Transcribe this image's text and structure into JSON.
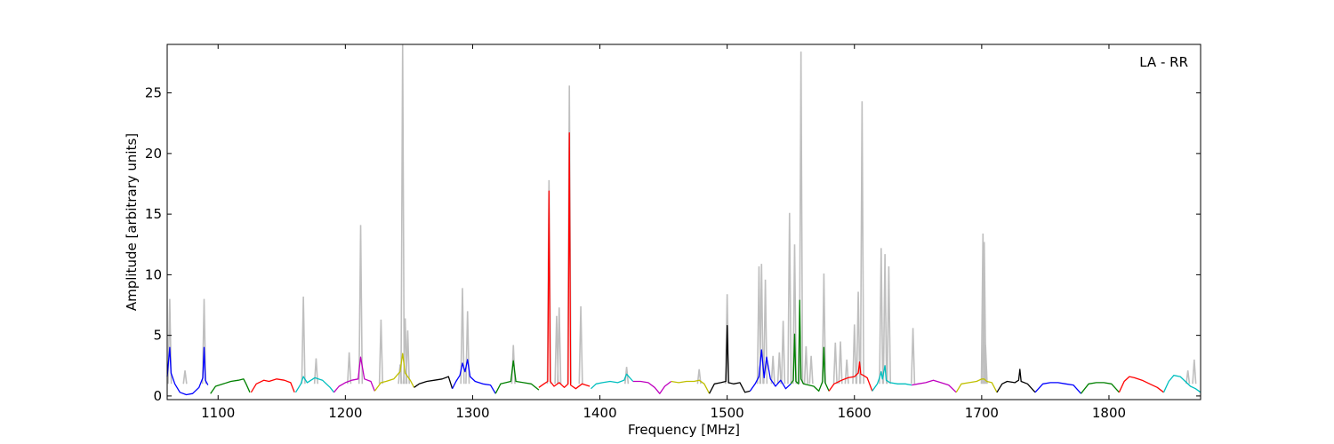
{
  "chart_data": {
    "type": "line",
    "title": "",
    "annotation": "LA - RR",
    "xlabel": "Frequency [MHz]",
    "ylabel": "Amplitude [arbitrary units]",
    "xlim": [
      1060,
      1872
    ],
    "ylim": [
      -0.3,
      29
    ],
    "xticks": [
      1100,
      1200,
      1300,
      1400,
      1500,
      1600,
      1700,
      1800
    ],
    "yticks": [
      0,
      5,
      10,
      15,
      20,
      25
    ],
    "raw_color": "#bfbfbf",
    "colors": [
      "#0000ff",
      "#008000",
      "#ff0000",
      "#00bfbf",
      "#bf00bf",
      "#bfbf00",
      "#000000"
    ],
    "grid": false,
    "raw_spikes": [
      {
        "x": 1062,
        "y": 8.0
      },
      {
        "x": 1074,
        "y": 2.1
      },
      {
        "x": 1089,
        "y": 8.0
      },
      {
        "x": 1167,
        "y": 8.2
      },
      {
        "x": 1177,
        "y": 3.1
      },
      {
        "x": 1203,
        "y": 3.6
      },
      {
        "x": 1212,
        "y": 14.1
      },
      {
        "x": 1228,
        "y": 6.3
      },
      {
        "x": 1243,
        "y": 2.6
      },
      {
        "x": 1245,
        "y": 29.0
      },
      {
        "x": 1247,
        "y": 6.4
      },
      {
        "x": 1249,
        "y": 5.4
      },
      {
        "x": 1292,
        "y": 8.9
      },
      {
        "x": 1296,
        "y": 7.0
      },
      {
        "x": 1332,
        "y": 4.2
      },
      {
        "x": 1360,
        "y": 17.8
      },
      {
        "x": 1366,
        "y": 6.6
      },
      {
        "x": 1368,
        "y": 7.3
      },
      {
        "x": 1376,
        "y": 25.6
      },
      {
        "x": 1385,
        "y": 7.4
      },
      {
        "x": 1421,
        "y": 2.4
      },
      {
        "x": 1478,
        "y": 2.2
      },
      {
        "x": 1500,
        "y": 8.4
      },
      {
        "x": 1525,
        "y": 10.7
      },
      {
        "x": 1527,
        "y": 10.9
      },
      {
        "x": 1530,
        "y": 9.6
      },
      {
        "x": 1536,
        "y": 3.3
      },
      {
        "x": 1541,
        "y": 3.6
      },
      {
        "x": 1544,
        "y": 6.2
      },
      {
        "x": 1549,
        "y": 15.1
      },
      {
        "x": 1553,
        "y": 12.5
      },
      {
        "x": 1558,
        "y": 28.4
      },
      {
        "x": 1562,
        "y": 4.1
      },
      {
        "x": 1566,
        "y": 3.3
      },
      {
        "x": 1576,
        "y": 10.1
      },
      {
        "x": 1585,
        "y": 4.4
      },
      {
        "x": 1589,
        "y": 4.5
      },
      {
        "x": 1594,
        "y": 3.0
      },
      {
        "x": 1600,
        "y": 5.9
      },
      {
        "x": 1603,
        "y": 8.6
      },
      {
        "x": 1606,
        "y": 24.3
      },
      {
        "x": 1621,
        "y": 12.2
      },
      {
        "x": 1624,
        "y": 11.7
      },
      {
        "x": 1627,
        "y": 10.7
      },
      {
        "x": 1646,
        "y": 5.6
      },
      {
        "x": 1701,
        "y": 13.4
      },
      {
        "x": 1702,
        "y": 12.7
      },
      {
        "x": 1703,
        "y": 4.2
      },
      {
        "x": 1862,
        "y": 2.1
      },
      {
        "x": 1867,
        "y": 3.0
      }
    ],
    "series": [
      {
        "color_index": 0,
        "x": [
          1060,
          1062,
          1063,
          1066,
          1070,
          1075,
          1080,
          1085,
          1088,
          1089,
          1090,
          1092
        ],
        "y": [
          1.6,
          4.0,
          1.9,
          1.0,
          0.3,
          0.1,
          0.2,
          0.7,
          1.5,
          4.0,
          1.3,
          0.9
        ]
      },
      {
        "color_index": 1,
        "x": [
          1094,
          1098,
          1104,
          1110,
          1116,
          1120,
          1122,
          1125
        ],
        "y": [
          0.2,
          0.8,
          1.0,
          1.2,
          1.3,
          1.4,
          1.0,
          0.3
        ]
      },
      {
        "color_index": 2,
        "x": [
          1126,
          1130,
          1136,
          1140,
          1146,
          1152,
          1157,
          1160
        ],
        "y": [
          0.3,
          1.0,
          1.3,
          1.2,
          1.4,
          1.3,
          1.1,
          0.3
        ]
      },
      {
        "color_index": 3,
        "x": [
          1161,
          1165,
          1167,
          1170,
          1176,
          1182,
          1188,
          1191
        ],
        "y": [
          0.3,
          1.0,
          1.6,
          1.1,
          1.5,
          1.3,
          0.7,
          0.3
        ]
      },
      {
        "color_index": 4,
        "x": [
          1191,
          1195,
          1200,
          1205,
          1210,
          1212,
          1215,
          1220,
          1223
        ],
        "y": [
          0.3,
          0.8,
          1.1,
          1.3,
          1.4,
          3.2,
          1.4,
          1.2,
          0.4
        ]
      },
      {
        "color_index": 5,
        "x": [
          1223,
          1228,
          1232,
          1238,
          1243,
          1245,
          1247,
          1251,
          1254
        ],
        "y": [
          0.4,
          1.1,
          1.2,
          1.4,
          2.0,
          3.5,
          1.9,
          1.3,
          0.7
        ]
      },
      {
        "color_index": 6,
        "x": [
          1254,
          1258,
          1264,
          1270,
          1276,
          1281,
          1284
        ],
        "y": [
          0.7,
          1.0,
          1.2,
          1.3,
          1.4,
          1.6,
          0.6
        ]
      },
      {
        "color_index": 0,
        "x": [
          1284,
          1287,
          1290,
          1292,
          1294,
          1296,
          1298,
          1302,
          1308,
          1314,
          1318
        ],
        "y": [
          0.6,
          1.2,
          1.7,
          2.7,
          2.0,
          3.0,
          1.6,
          1.2,
          1.0,
          0.9,
          0.2
        ]
      },
      {
        "color_index": 1,
        "x": [
          1318,
          1322,
          1326,
          1330,
          1332,
          1334,
          1340,
          1346,
          1352
        ],
        "y": [
          0.2,
          1.0,
          1.1,
          1.2,
          2.9,
          1.2,
          1.1,
          1.0,
          0.5
        ]
      },
      {
        "color_index": 2,
        "x": [
          1352,
          1356,
          1359,
          1360,
          1361,
          1364,
          1368,
          1372,
          1375,
          1376,
          1377,
          1381,
          1386,
          1392
        ],
        "y": [
          0.7,
          1.0,
          1.2,
          16.9,
          1.2,
          0.8,
          1.1,
          0.7,
          1.0,
          21.7,
          0.9,
          0.6,
          1.0,
          0.8
        ]
      },
      {
        "color_index": 3,
        "x": [
          1393,
          1397,
          1402,
          1408,
          1414,
          1419,
          1421,
          1426
        ],
        "y": [
          0.6,
          1.0,
          1.1,
          1.2,
          1.1,
          1.3,
          1.8,
          1.2
        ]
      },
      {
        "color_index": 4,
        "x": [
          1426,
          1432,
          1438,
          1443,
          1447,
          1451,
          1456
        ],
        "y": [
          1.2,
          1.2,
          1.1,
          0.7,
          0.2,
          0.8,
          1.2
        ]
      },
      {
        "color_index": 5,
        "x": [
          1456,
          1462,
          1468,
          1474,
          1478,
          1482,
          1486
        ],
        "y": [
          1.2,
          1.1,
          1.2,
          1.2,
          1.3,
          1.0,
          0.2
        ]
      },
      {
        "color_index": 6,
        "x": [
          1486,
          1490,
          1495,
          1499,
          1500,
          1501,
          1505,
          1510,
          1514,
          1518
        ],
        "y": [
          0.2,
          1.0,
          1.1,
          1.2,
          5.8,
          1.1,
          1.0,
          1.1,
          0.3,
          0.4
        ]
      },
      {
        "color_index": 0,
        "x": [
          1518,
          1522,
          1525,
          1527,
          1529,
          1531,
          1534,
          1538,
          1542,
          1546,
          1550
        ],
        "y": [
          0.4,
          1.0,
          1.6,
          3.8,
          1.5,
          3.2,
          1.4,
          0.8,
          1.3,
          0.6,
          1.0
        ]
      },
      {
        "color_index": 1,
        "x": [
          1550,
          1552,
          1553,
          1554,
          1556,
          1557,
          1558,
          1560,
          1564,
          1568,
          1572,
          1575,
          1576,
          1577,
          1580
        ],
        "y": [
          1.0,
          1.3,
          5.1,
          1.2,
          1.0,
          7.9,
          1.4,
          1.0,
          0.9,
          0.8,
          0.4,
          1.2,
          4.0,
          1.1,
          0.4
        ]
      },
      {
        "color_index": 2,
        "x": [
          1580,
          1584,
          1590,
          1595,
          1600,
          1603,
          1604,
          1605,
          1607,
          1610,
          1614
        ],
        "y": [
          0.4,
          1.0,
          1.3,
          1.5,
          1.6,
          1.9,
          2.8,
          1.8,
          1.7,
          1.5,
          0.4
        ]
      },
      {
        "color_index": 3,
        "x": [
          1614,
          1618,
          1620,
          1621,
          1622,
          1624,
          1625,
          1628,
          1634,
          1640,
          1645
        ],
        "y": [
          0.4,
          1.0,
          1.6,
          2.0,
          1.4,
          2.5,
          1.3,
          1.1,
          1.0,
          1.0,
          0.9
        ]
      },
      {
        "color_index": 4,
        "x": [
          1645,
          1650,
          1656,
          1662,
          1668,
          1674,
          1680
        ],
        "y": [
          0.9,
          1.0,
          1.1,
          1.3,
          1.1,
          0.9,
          0.3
        ]
      },
      {
        "color_index": 5,
        "x": [
          1680,
          1684,
          1690,
          1696,
          1700,
          1702,
          1704,
          1708,
          1712
        ],
        "y": [
          0.3,
          1.0,
          1.1,
          1.2,
          1.4,
          1.4,
          1.2,
          1.1,
          0.3
        ]
      },
      {
        "color_index": 6,
        "x": [
          1712,
          1716,
          1720,
          1726,
          1729,
          1730,
          1731,
          1736,
          1742
        ],
        "y": [
          0.3,
          1.0,
          1.2,
          1.1,
          1.3,
          2.2,
          1.2,
          1.0,
          0.3
        ]
      },
      {
        "color_index": 0,
        "x": [
          1742,
          1748,
          1754,
          1760,
          1766,
          1772,
          1778
        ],
        "y": [
          0.3,
          1.0,
          1.1,
          1.1,
          1.0,
          0.9,
          0.2
        ]
      },
      {
        "color_index": 1,
        "x": [
          1778,
          1784,
          1790,
          1796,
          1802,
          1808
        ],
        "y": [
          0.2,
          1.0,
          1.1,
          1.1,
          1.0,
          0.3
        ]
      },
      {
        "color_index": 2,
        "x": [
          1808,
          1812,
          1816,
          1820,
          1826,
          1832,
          1838,
          1843
        ],
        "y": [
          0.3,
          1.2,
          1.6,
          1.5,
          1.3,
          1.0,
          0.7,
          0.3
        ]
      },
      {
        "color_index": 3,
        "x": [
          1843,
          1847,
          1851,
          1856,
          1860,
          1864,
          1868,
          1872
        ],
        "y": [
          0.3,
          1.2,
          1.7,
          1.6,
          1.2,
          0.8,
          0.6,
          0.3
        ]
      }
    ]
  }
}
